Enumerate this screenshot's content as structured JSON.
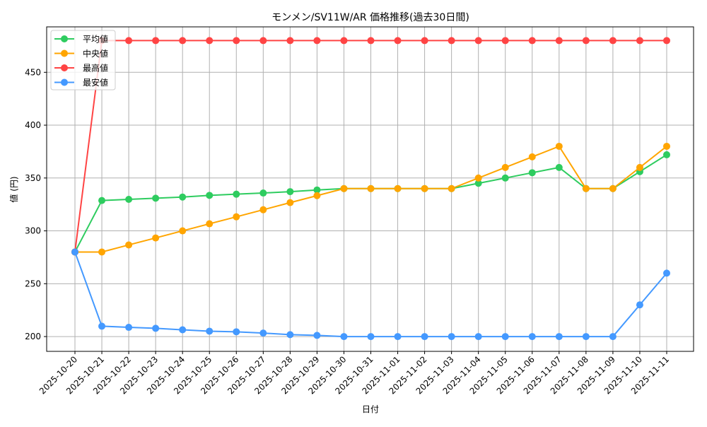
{
  "chart_data": {
    "type": "line",
    "title": "モンメン/SV11W/AR 価格推移(過去30日間)",
    "xlabel": "日付",
    "ylabel": "値 (円)",
    "ylim": [
      186,
      493
    ],
    "yticks": [
      200,
      250,
      300,
      350,
      400,
      450
    ],
    "grid": true,
    "legend_position": "top-left",
    "x": [
      "2025-10-20",
      "2025-10-21",
      "2025-10-22",
      "2025-10-23",
      "2025-10-24",
      "2025-10-25",
      "2025-10-26",
      "2025-10-27",
      "2025-10-28",
      "2025-10-29",
      "2025-10-30",
      "2025-10-31",
      "2025-11-01",
      "2025-11-02",
      "2025-11-03",
      "2025-11-04",
      "2025-11-05",
      "2025-11-06",
      "2025-11-07",
      "2025-11-08",
      "2025-11-09",
      "2025-11-10",
      "2025-11-11"
    ],
    "series": [
      {
        "name": "平均値",
        "color": "#2ecc5f",
        "values": [
          280,
          328.7,
          329.8,
          330.9,
          332,
          333.6,
          334.7,
          335.8,
          337.1,
          338.7,
          340,
          340,
          340,
          340,
          340,
          345,
          350,
          355,
          360,
          340,
          340,
          356,
          372
        ]
      },
      {
        "name": "中央値",
        "color": "#ffa500",
        "values": [
          280,
          280,
          286.7,
          293.3,
          300,
          306.7,
          313.3,
          320,
          326.7,
          333.3,
          340,
          340,
          340,
          340,
          340,
          350,
          360,
          370,
          380,
          340,
          340,
          360,
          380
        ]
      },
      {
        "name": "最高値",
        "color": "#ff4444",
        "values": [
          280,
          480,
          480,
          480,
          480,
          480,
          480,
          480,
          480,
          480,
          480,
          480,
          480,
          480,
          480,
          480,
          480,
          480,
          480,
          480,
          480,
          480,
          480
        ]
      },
      {
        "name": "最安値",
        "color": "#4499ff",
        "values": [
          280,
          209.8,
          208.7,
          207.8,
          206.4,
          205.1,
          204.5,
          203.3,
          201.8,
          201.1,
          200,
          200,
          200,
          200,
          200,
          200,
          200,
          200,
          200,
          200,
          200,
          230,
          260
        ]
      }
    ]
  }
}
